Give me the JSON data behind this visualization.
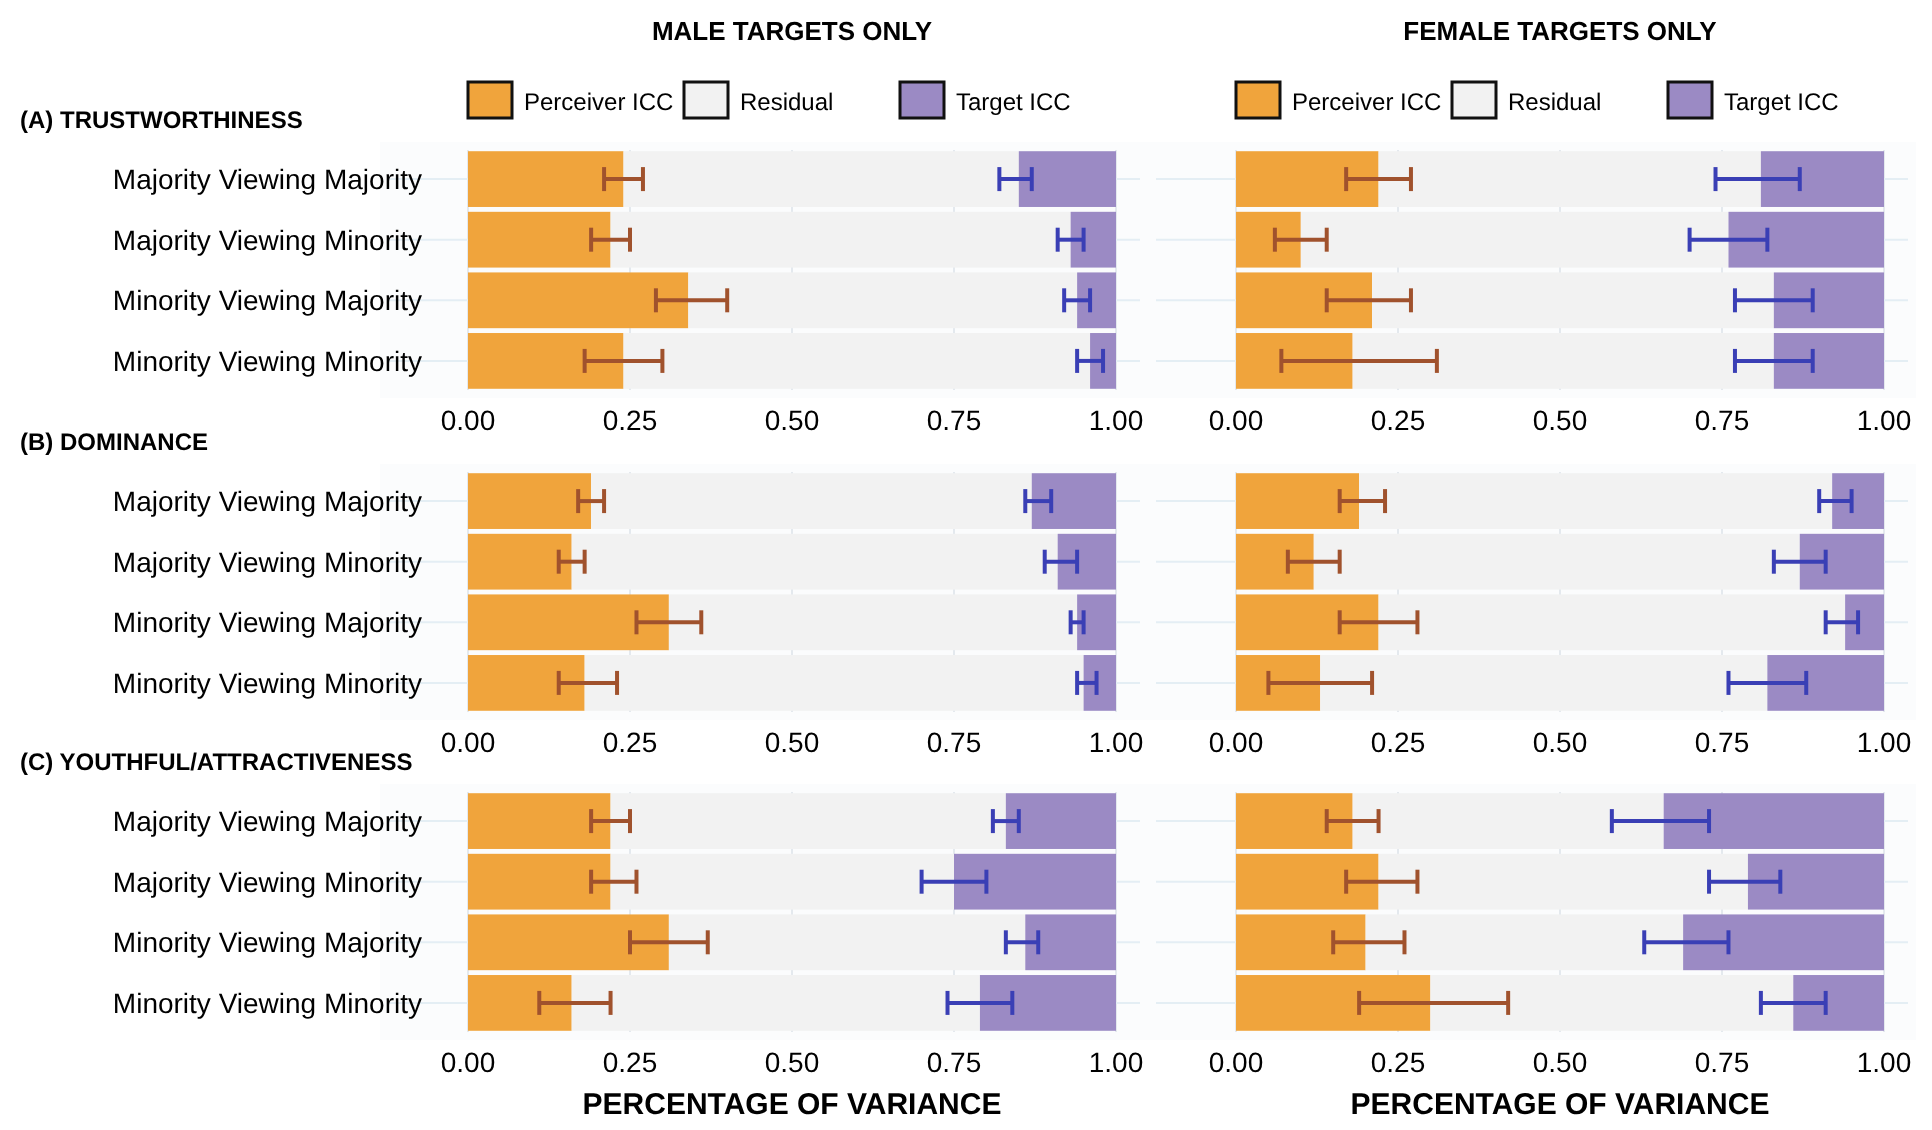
{
  "chart_data": [
    {
      "type": "bar",
      "orientation": "horizontal",
      "stacked": true,
      "title": "MALE TARGETS ONLY",
      "subtitle": "(A) TRUSTWORTHINESS",
      "categories": [
        "Majority Viewing Majority",
        "Majority Viewing Minority",
        "Minority Viewing Majority",
        "Minority Viewing Minority"
      ],
      "xlim": [
        0,
        1
      ],
      "xticks": [
        {
          "value": 0,
          "label": "0.00"
        },
        {
          "value": 0.25,
          "label": "0.25"
        },
        {
          "value": 0.5,
          "label": "0.50"
        },
        {
          "value": 0.75,
          "label": "0.75"
        },
        {
          "value": 1,
          "label": "1.00"
        }
      ],
      "grid": true,
      "legend": "top",
      "series": [
        {
          "name": "Perceiver ICC",
          "color": "#f0a43c",
          "values": [
            0.24,
            0.22,
            0.34,
            0.24
          ],
          "errors": [
            [
              0.21,
              0.27
            ],
            [
              0.19,
              0.25
            ],
            [
              0.29,
              0.4
            ],
            [
              0.18,
              0.3
            ]
          ]
        },
        {
          "name": "Residual",
          "color": "#f2f2f2",
          "values": [
            0.61,
            0.71,
            0.6,
            0.72
          ]
        },
        {
          "name": "Target ICC",
          "color": "#9b8ac4",
          "values": [
            0.15,
            0.07,
            0.06,
            0.04
          ],
          "errors": [
            [
              0.82,
              0.87
            ],
            [
              0.91,
              0.95
            ],
            [
              0.92,
              0.96
            ],
            [
              0.94,
              0.98
            ]
          ]
        }
      ]
    },
    {
      "type": "bar",
      "orientation": "horizontal",
      "stacked": true,
      "title": "FEMALE TARGETS ONLY",
      "categories": [
        null,
        null,
        null,
        null
      ],
      "xlim": [
        0,
        1
      ],
      "xticks": [
        {
          "value": 0,
          "label": "0.00"
        },
        {
          "value": 0.25,
          "label": "0.25"
        },
        {
          "value": 0.5,
          "label": "0.50"
        },
        {
          "value": 0.75,
          "label": "0.75"
        },
        {
          "value": 1,
          "label": "1.00"
        }
      ],
      "grid": true,
      "legend": "top",
      "tick_labels": "x",
      "series": [
        {
          "name": "Perceiver ICC",
          "color": "#f0a43c",
          "values": [
            0.22,
            0.1,
            0.21,
            0.18
          ],
          "errors": [
            [
              0.17,
              0.27
            ],
            [
              0.06,
              0.14
            ],
            [
              0.14,
              0.27
            ],
            [
              0.07,
              0.31
            ]
          ]
        },
        {
          "name": "Residual",
          "color": "#f2f2f2",
          "values": [
            0.59,
            0.66,
            0.62,
            0.65
          ]
        },
        {
          "name": "Target ICC",
          "color": "#9b8ac4",
          "values": [
            0.19,
            0.24,
            0.17,
            0.17
          ],
          "errors": [
            [
              0.74,
              0.87
            ],
            [
              0.7,
              0.82
            ],
            [
              0.77,
              0.89
            ],
            [
              0.77,
              0.89
            ]
          ]
        }
      ]
    },
    {
      "type": "bar",
      "orientation": "horizontal",
      "stacked": true,
      "subtitle": "(B) DOMINANCE",
      "categories": [
        "Majority Viewing Majority",
        "Majority Viewing Minority",
        "Minority Viewing Majority",
        "Minority Viewing Minority"
      ],
      "xlim": [
        0,
        1
      ],
      "xticks": [
        {
          "value": 0,
          "label": "0.00"
        },
        {
          "value": 0.25,
          "label": "0.25"
        },
        {
          "value": 0.5,
          "label": "0.50"
        },
        {
          "value": 0.75,
          "label": "0.75"
        },
        {
          "value": 1,
          "label": "1.00"
        }
      ],
      "grid": true,
      "series": [
        {
          "color": "#f0a43c",
          "values": [
            0.19,
            0.16,
            0.31,
            0.18
          ],
          "errors": [
            [
              0.17,
              0.21
            ],
            [
              0.14,
              0.18
            ],
            [
              0.26,
              0.36
            ],
            [
              0.14,
              0.23
            ]
          ]
        },
        {
          "color": "#f2f2f2",
          "values": [
            0.68,
            0.75,
            0.63,
            0.77
          ]
        },
        {
          "color": "#9b8ac4",
          "values": [
            0.13,
            0.09,
            0.06,
            0.05
          ],
          "errors": [
            [
              0.86,
              0.9
            ],
            [
              0.89,
              0.94
            ],
            [
              0.93,
              0.95
            ],
            [
              0.94,
              0.97
            ]
          ]
        }
      ]
    },
    {
      "type": "bar",
      "orientation": "horizontal",
      "stacked": true,
      "categories": [
        null,
        null,
        null,
        null
      ],
      "xlim": [
        0,
        1
      ],
      "xticks": [
        {
          "value": 0,
          "label": "0.00"
        },
        {
          "value": 0.25,
          "label": "0.25"
        },
        {
          "value": 0.5,
          "label": "0.50"
        },
        {
          "value": 0.75,
          "label": "0.75"
        },
        {
          "value": 1,
          "label": "1.00"
        }
      ],
      "grid": true,
      "tick_labels": "x",
      "series": [
        {
          "color": "#f0a43c",
          "values": [
            0.19,
            0.12,
            0.22,
            0.13
          ],
          "errors": [
            [
              0.16,
              0.23
            ],
            [
              0.08,
              0.16
            ],
            [
              0.16,
              0.28
            ],
            [
              0.05,
              0.21
            ]
          ]
        },
        {
          "color": "#f2f2f2",
          "values": [
            0.73,
            0.75,
            0.72,
            0.69
          ]
        },
        {
          "color": "#9b8ac4",
          "values": [
            0.08,
            0.13,
            0.06,
            0.18
          ],
          "errors": [
            [
              0.9,
              0.95
            ],
            [
              0.83,
              0.91
            ],
            [
              0.91,
              0.96
            ],
            [
              0.76,
              0.88
            ]
          ]
        }
      ]
    },
    {
      "type": "bar",
      "orientation": "horizontal",
      "stacked": true,
      "subtitle": "(C) YOUTHFUL/ATTRACTIVENESS",
      "xlabel": "PERCENTAGE OF VARIANCE",
      "categories": [
        "Majority Viewing Majority",
        "Majority Viewing Minority",
        "Minority Viewing Majority",
        "Minority Viewing Minority"
      ],
      "xlim": [
        0,
        1
      ],
      "xticks": [
        {
          "value": 0,
          "label": "0.00"
        },
        {
          "value": 0.25,
          "label": "0.25"
        },
        {
          "value": 0.5,
          "label": "0.50"
        },
        {
          "value": 0.75,
          "label": "0.75"
        },
        {
          "value": 1,
          "label": "1.00"
        }
      ],
      "grid": true,
      "series": [
        {
          "color": "#f0a43c",
          "values": [
            0.22,
            0.22,
            0.31,
            0.16
          ],
          "errors": [
            [
              0.19,
              0.25
            ],
            [
              0.19,
              0.26
            ],
            [
              0.25,
              0.37
            ],
            [
              0.11,
              0.22
            ]
          ]
        },
        {
          "color": "#f2f2f2",
          "values": [
            0.61,
            0.53,
            0.55,
            0.63
          ]
        },
        {
          "color": "#9b8ac4",
          "values": [
            0.17,
            0.25,
            0.14,
            0.21
          ],
          "errors": [
            [
              0.81,
              0.85
            ],
            [
              0.7,
              0.8
            ],
            [
              0.83,
              0.88
            ],
            [
              0.74,
              0.84
            ]
          ]
        }
      ]
    },
    {
      "type": "bar",
      "orientation": "horizontal",
      "stacked": true,
      "xlabel": "PERCENTAGE OF VARIANCE",
      "categories": [
        null,
        null,
        null,
        null
      ],
      "xlim": [
        0,
        1
      ],
      "xticks": [
        {
          "value": 0,
          "label": "0.00"
        },
        {
          "value": 0.25,
          "label": "0.25"
        },
        {
          "value": 0.5,
          "label": "0.50"
        },
        {
          "value": 0.75,
          "label": "0.75"
        },
        {
          "value": 1,
          "label": "1.00"
        }
      ],
      "grid": true,
      "tick_labels": "x",
      "series": [
        {
          "color": "#f0a43c",
          "values": [
            0.18,
            0.22,
            0.2,
            0.3
          ],
          "errors": [
            [
              0.14,
              0.22
            ],
            [
              0.17,
              0.28
            ],
            [
              0.15,
              0.26
            ],
            [
              0.19,
              0.42
            ]
          ]
        },
        {
          "color": "#f2f2f2",
          "values": [
            0.48,
            0.57,
            0.49,
            0.56
          ]
        },
        {
          "color": "#9b8ac4",
          "values": [
            0.34,
            0.21,
            0.31,
            0.14
          ],
          "errors": [
            [
              0.58,
              0.73
            ],
            [
              0.73,
              0.84
            ],
            [
              0.63,
              0.76
            ],
            [
              0.81,
              0.91
            ]
          ]
        }
      ]
    }
  ]
}
